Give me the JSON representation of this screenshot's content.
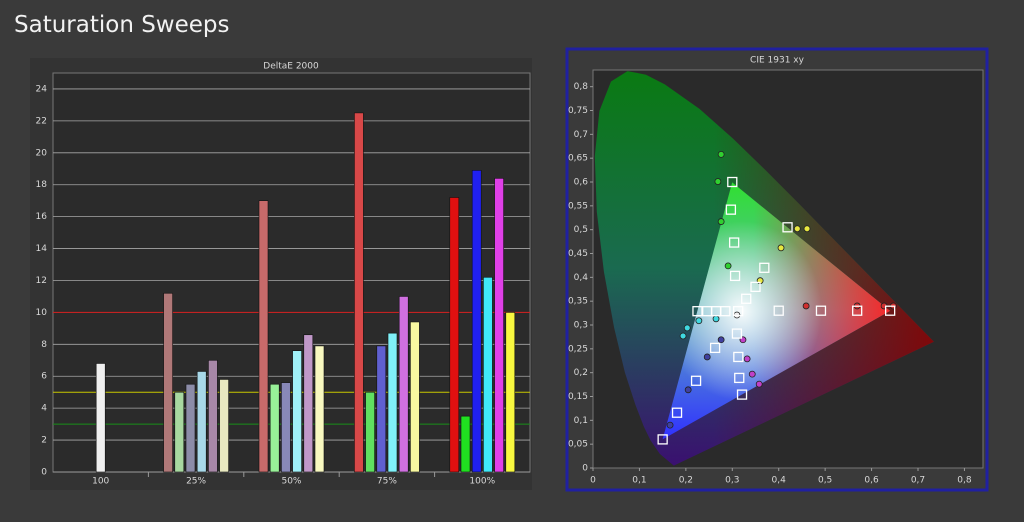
{
  "page_title": "Saturation Sweeps",
  "chart_data": [
    {
      "type": "bar",
      "title": "DeltaE 2000",
      "categories": [
        "100",
        "25%",
        "50%",
        "75%",
        "100%"
      ],
      "ylim": [
        0,
        25
      ],
      "yticks": [
        0,
        2,
        4,
        6,
        8,
        10,
        12,
        14,
        16,
        18,
        20,
        22,
        24
      ],
      "grid": true,
      "reference_lines": [
        {
          "value": 10,
          "color": "#d01818"
        },
        {
          "value": 5,
          "color": "#c8c800"
        },
        {
          "value": 3,
          "color": "#189018"
        }
      ],
      "series": [
        {
          "color": "#f0f0f0",
          "values": [
            6.8,
            null,
            null,
            null,
            null
          ]
        },
        {
          "colors": [
            null,
            "#b07878",
            "#c86a6a",
            "#d84848",
            "#e01010"
          ],
          "values": [
            null,
            11.2,
            17.0,
            22.5,
            17.2
          ]
        },
        {
          "colors": [
            null,
            "#a8d8a0",
            "#98f098",
            "#60e060",
            "#20e020"
          ],
          "values": [
            null,
            5.0,
            5.5,
            5.0,
            3.5
          ]
        },
        {
          "colors": [
            null,
            "#8c8ca8",
            "#8888b8",
            "#6060d0",
            "#2020f0"
          ],
          "values": [
            null,
            5.5,
            5.6,
            7.9,
            18.9
          ]
        },
        {
          "colors": [
            null,
            "#a8d8e8",
            "#a0f0f8",
            "#80f0f8",
            "#40e8f8"
          ],
          "values": [
            null,
            6.3,
            7.6,
            8.7,
            12.2
          ]
        },
        {
          "colors": [
            null,
            "#a888a8",
            "#c098c8",
            "#d070e0",
            "#e040e8"
          ],
          "values": [
            null,
            7.0,
            8.6,
            11.0,
            18.4
          ]
        },
        {
          "colors": [
            null,
            "#e8e8c0",
            "#f8f8c0",
            "#f8f8a0",
            "#f8f840"
          ],
          "values": [
            null,
            5.8,
            7.9,
            9.4,
            10.0
          ]
        }
      ]
    },
    {
      "type": "scatter",
      "title": "CIE 1931 xy",
      "xlim": [
        0,
        0.84
      ],
      "ylim": [
        0,
        0.835
      ],
      "xticks": [
        0,
        {
          "value": 0.1,
          "label": "0,1"
        },
        {
          "value": 0.2,
          "label": "0,2"
        },
        {
          "value": 0.3,
          "label": "0,3"
        },
        {
          "value": 0.4,
          "label": "0,4"
        },
        {
          "value": 0.5,
          "label": "0,5"
        },
        {
          "value": 0.6,
          "label": "0,6"
        },
        {
          "value": 0.7,
          "label": "0,7"
        },
        {
          "value": 0.8,
          "label": "0,8"
        }
      ],
      "yticks": [
        0,
        {
          "value": 0.05,
          "label": "0,05"
        },
        {
          "value": 0.1,
          "label": "0,1"
        },
        {
          "value": 0.15,
          "label": "0,15"
        },
        {
          "value": 0.2,
          "label": "0,2"
        },
        {
          "value": 0.25,
          "label": "0,25"
        },
        {
          "value": 0.3,
          "label": "0,3"
        },
        {
          "value": 0.35,
          "label": "0,35"
        },
        {
          "value": 0.4,
          "label": "0,4"
        },
        {
          "value": 0.45,
          "label": "0,45"
        },
        {
          "value": 0.5,
          "label": "0,5"
        },
        {
          "value": 0.55,
          "label": "0,55"
        },
        {
          "value": 0.6,
          "label": "0,6"
        },
        {
          "value": 0.65,
          "label": "0,65"
        },
        {
          "value": 0.7,
          "label": "0,7"
        },
        {
          "value": 0.75,
          "label": "0,75"
        },
        {
          "value": 0.8,
          "label": "0,8"
        }
      ],
      "series": [
        {
          "marker": "circle",
          "color": "#30d030",
          "x": [
            0.276,
            0.269,
            0.276,
            0.291
          ],
          "y": [
            0.658,
            0.601,
            0.517,
            0.424
          ]
        },
        {
          "marker": "circle",
          "color": "#e8e840",
          "x": [
            0.461,
            0.44,
            0.405,
            0.36
          ],
          "y": [
            0.502,
            0.502,
            0.462,
            0.393
          ]
        },
        {
          "marker": "circle",
          "color": "#d03030",
          "x": [
            0.647,
            0.627,
            0.569,
            0.459
          ],
          "y": [
            0.34,
            0.34,
            0.34,
            0.34
          ]
        },
        {
          "marker": "circle",
          "color": "#f0f0f0",
          "x": [
            0.31
          ],
          "y": [
            0.321
          ]
        },
        {
          "marker": "circle",
          "color": "#40d8e0",
          "x": [
            0.194,
            0.203,
            0.228,
            0.265
          ],
          "y": [
            0.277,
            0.294,
            0.309,
            0.313
          ]
        },
        {
          "marker": "circle",
          "color": "#4040a0",
          "x": [
            0.166,
            0.205,
            0.246,
            0.276
          ],
          "y": [
            0.09,
            0.164,
            0.233,
            0.269
          ]
        },
        {
          "marker": "circle",
          "color": "#c040c8",
          "x": [
            0.358,
            0.343,
            0.332,
            0.323
          ],
          "y": [
            0.176,
            0.197,
            0.229,
            0.269
          ]
        },
        {
          "marker": "square",
          "color": "#ffffff",
          "x": [
            0.3127,
            0.64,
            0.569,
            0.491,
            0.4,
            0.3,
            0.297,
            0.304,
            0.306,
            0.15,
            0.181,
            0.222,
            0.263,
            0.225,
            0.246,
            0.265,
            0.285,
            0.321,
            0.315,
            0.313,
            0.31,
            0.419,
            0.369,
            0.35,
            0.33
          ],
          "y": [
            0.329,
            0.33,
            0.33,
            0.33,
            0.33,
            0.6,
            0.542,
            0.473,
            0.403,
            0.06,
            0.116,
            0.183,
            0.252,
            0.329,
            0.329,
            0.329,
            0.329,
            0.154,
            0.189,
            0.233,
            0.282,
            0.505,
            0.42,
            0.38,
            0.355
          ]
        }
      ]
    }
  ]
}
